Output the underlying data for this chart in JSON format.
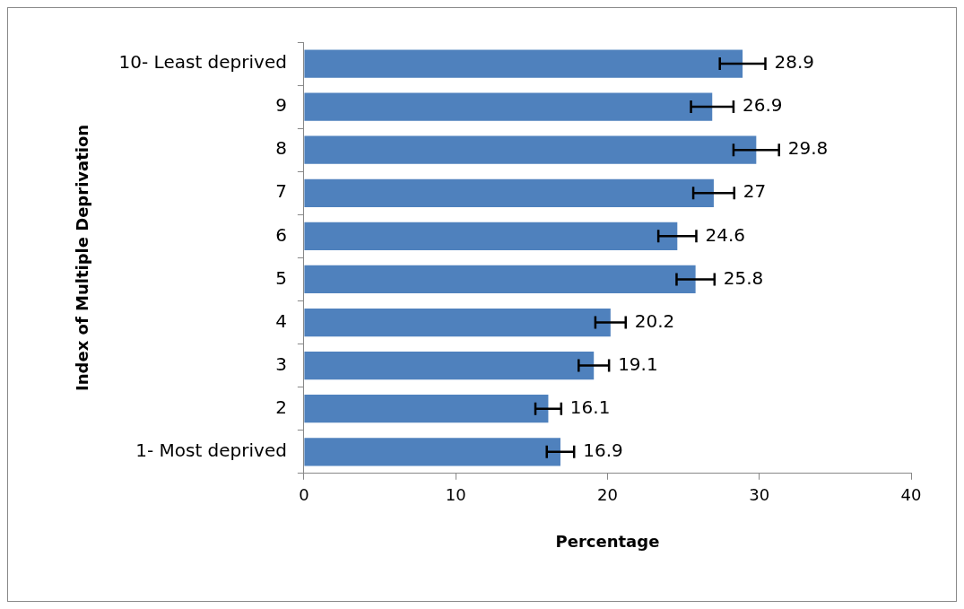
{
  "chart_data": {
    "type": "bar",
    "orientation": "horizontal",
    "xlabel": "Percentage",
    "ylabel": "Index of Multiple Deprivation",
    "categories": [
      "10- Least deprived",
      "9",
      "8",
      "7",
      "6",
      "5",
      "4",
      "3",
      "2",
      "1- Most deprived"
    ],
    "values": [
      28.9,
      26.9,
      29.8,
      27,
      24.6,
      25.8,
      20.2,
      19.1,
      16.1,
      16.9
    ],
    "errors": [
      1.5,
      1.4,
      1.5,
      1.35,
      1.25,
      1.25,
      1.0,
      1.0,
      0.85,
      0.9
    ],
    "color": "#4f81bd",
    "xlim": [
      0,
      40
    ],
    "xticks": [
      0,
      10,
      20,
      30,
      40
    ],
    "grid": false,
    "legend": false,
    "data_labels": true
  }
}
